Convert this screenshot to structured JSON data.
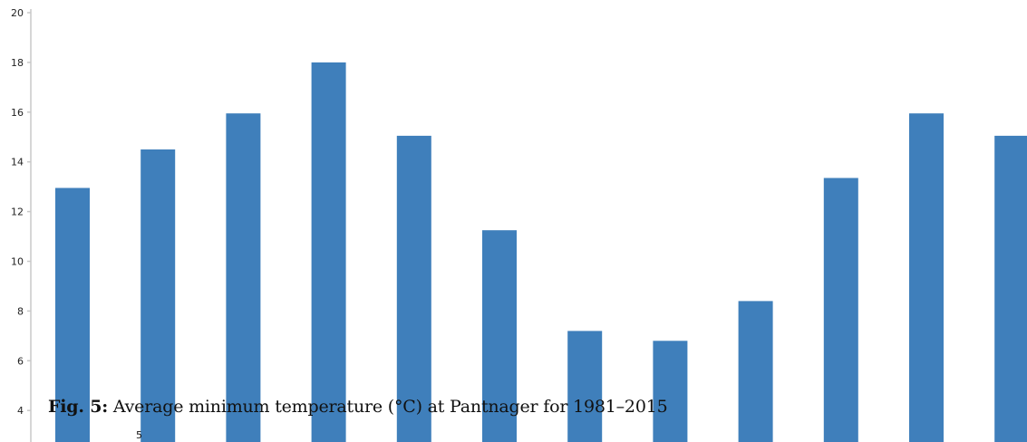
{
  "chart_data": {
    "type": "bar",
    "categories": [
      "",
      "",
      "",
      "",
      "",
      "",
      "",
      "",
      "",
      "",
      "",
      ""
    ],
    "values": [
      12.95,
      14.5,
      15.95,
      18.0,
      15.05,
      11.25,
      7.2,
      6.8,
      8.4,
      13.35,
      15.95,
      15.05
    ],
    "ylim": [
      3,
      20
    ],
    "yticks": [
      4,
      6,
      8,
      10,
      12,
      14,
      16,
      18,
      20
    ],
    "bar_color": "#3f7fbb",
    "axis_color": "#c8c8c8",
    "grid": false
  },
  "caption": {
    "label": "Fig. 5:",
    "text": " Average minimum temperature (°C) at Pantnager for 1981–2015"
  },
  "page_number": "5"
}
